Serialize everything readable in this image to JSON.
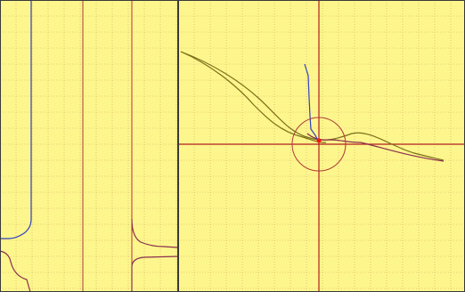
{
  "colors": {
    "background": "#fdf68c",
    "grid_dotted": "#d3a86a",
    "grid_solid": "#b03a3a",
    "axis": "#b21f1f",
    "frame": "#3a3a3a",
    "trace_blue": "#3040c0",
    "trace_olive": "#7a6f1a",
    "trace_maroon": "#8a2f4f",
    "circle": "#b03a3a",
    "cursor_dot": "#ff1010"
  },
  "panels": {
    "left": {
      "name": "time-trace-view"
    },
    "right": {
      "name": "xy-plot-view",
      "cursor_circle_visible": true
    }
  }
}
